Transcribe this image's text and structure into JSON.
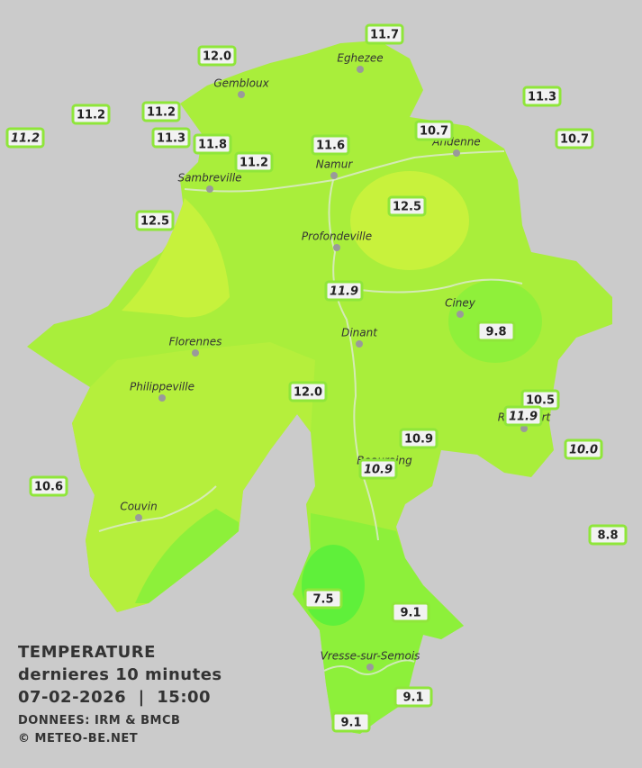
{
  "title": {
    "lines": [
      "TEMPERATURE",
      "dernieres 10 minutes",
      "07-02-2026  |  15:00"
    ],
    "credits": [
      "DONNEES: IRM & BMCB",
      "© METEO-BE.NET"
    ]
  },
  "cities": [
    {
      "name": "Eghezee"
    },
    {
      "name": "Gembloux"
    },
    {
      "name": "Andenne"
    },
    {
      "name": "Namur"
    },
    {
      "name": "Sambreville"
    },
    {
      "name": "Profondeville"
    },
    {
      "name": "Ciney"
    },
    {
      "name": "Dinant"
    },
    {
      "name": "Florennes"
    },
    {
      "name": "Philippeville"
    },
    {
      "name": "Rochefort"
    },
    {
      "name": "Beauraing"
    },
    {
      "name": "Couvin"
    },
    {
      "name": "Vresse-sur-Semois"
    }
  ],
  "stations": [
    {
      "label": "11.7",
      "italic": false
    },
    {
      "label": "12.0",
      "italic": false
    },
    {
      "label": "11.2",
      "italic": false
    },
    {
      "label": "11.2",
      "italic": false
    },
    {
      "label": "11.3",
      "italic": false
    },
    {
      "label": "11.2",
      "italic": true
    },
    {
      "label": "11.3",
      "italic": false
    },
    {
      "label": "11.8",
      "italic": false
    },
    {
      "label": "11.6",
      "italic": false
    },
    {
      "label": "10.7",
      "italic": false
    },
    {
      "label": "10.7",
      "italic": false
    },
    {
      "label": "11.2",
      "italic": false
    },
    {
      "label": "12.5",
      "italic": false
    },
    {
      "label": "12.5",
      "italic": false
    },
    {
      "label": "11.9",
      "italic": true
    },
    {
      "label": "9.8",
      "italic": false
    },
    {
      "label": "12.0",
      "italic": false
    },
    {
      "label": "10.5",
      "italic": false
    },
    {
      "label": "11.9",
      "italic": true
    },
    {
      "label": "10.9",
      "italic": false
    },
    {
      "label": "10.0",
      "italic": true
    },
    {
      "label": "10.9",
      "italic": true
    },
    {
      "label": "10.6",
      "italic": false
    },
    {
      "label": "8.8",
      "italic": false
    },
    {
      "label": "7.5",
      "italic": false
    },
    {
      "label": "9.1",
      "italic": false
    },
    {
      "label": "9.1",
      "italic": false
    },
    {
      "label": "9.1",
      "italic": false
    }
  ]
}
